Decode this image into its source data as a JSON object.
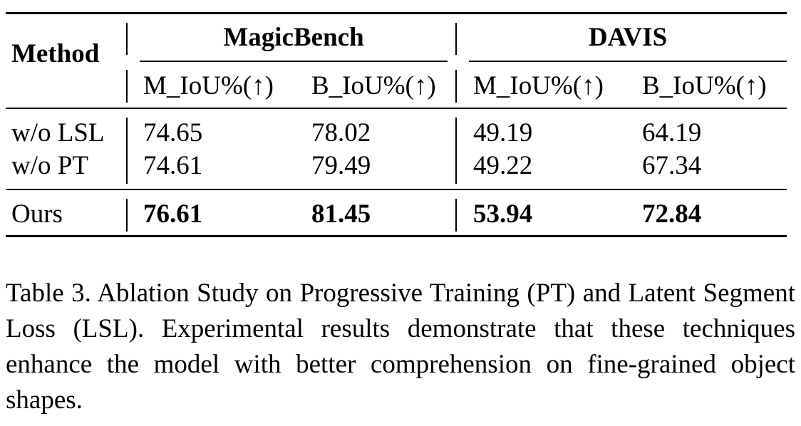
{
  "table": {
    "header": {
      "method": "Method",
      "groups": [
        "MagicBench",
        "DAVIS"
      ],
      "columns": [
        "M_IoU%(↑)",
        "B_IoU%(↑)",
        "M_IoU%(↑)",
        "B_IoU%(↑)"
      ]
    },
    "rows": [
      {
        "method": "w/o LSL",
        "values": [
          "74.65",
          "78.02",
          "49.19",
          "64.19"
        ],
        "bold": false
      },
      {
        "method": "w/o PT",
        "values": [
          "74.61",
          "79.49",
          "49.22",
          "67.34"
        ],
        "bold": false
      },
      {
        "method": "Ours",
        "values": [
          "76.61",
          "81.45",
          "53.94",
          "72.84"
        ],
        "bold": true
      }
    ]
  },
  "caption": "Table 3. Ablation Study on Progressive Training (PT) and Latent Segment Loss (LSL). Experimental results demonstrate that these techniques enhance the model with better comprehension on fine-grained object shapes."
}
